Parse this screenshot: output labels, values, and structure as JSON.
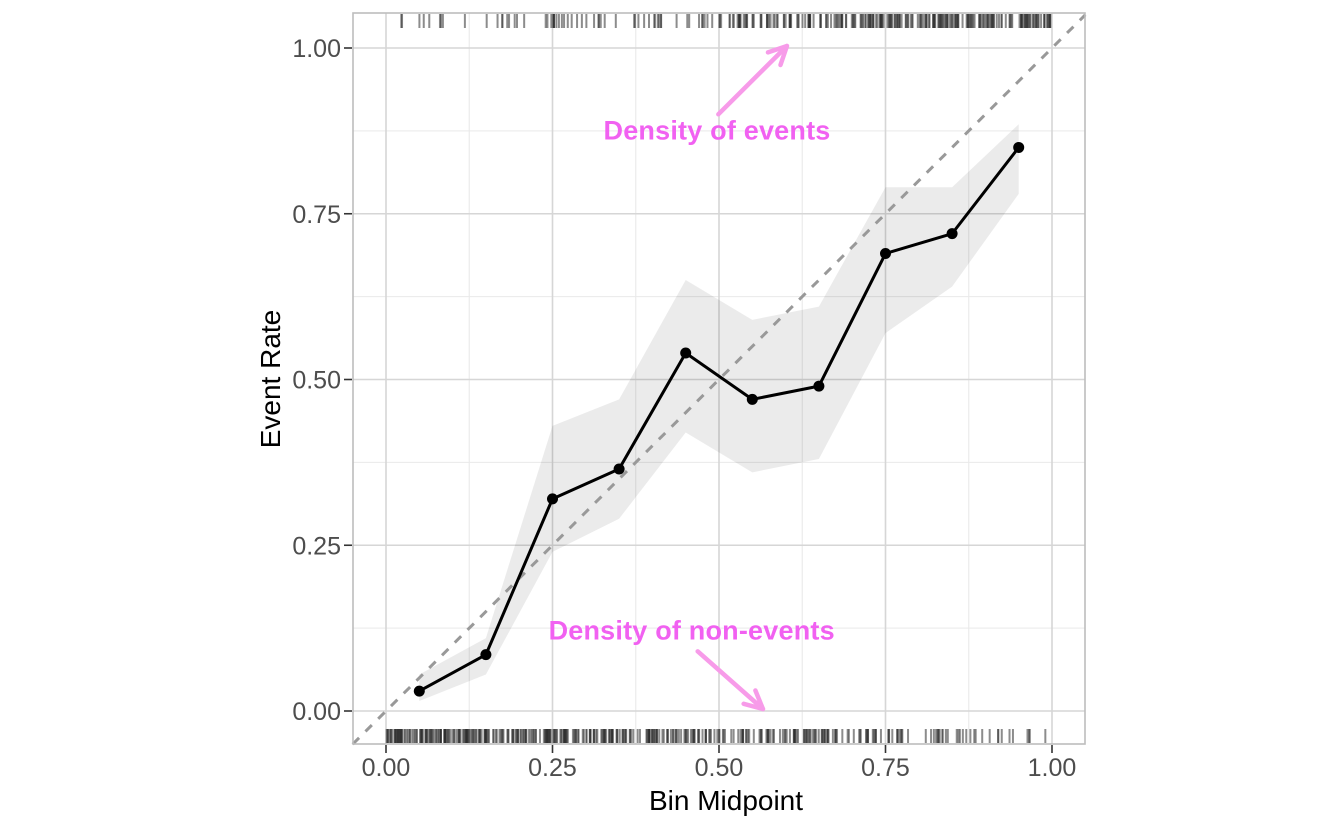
{
  "chart_data": {
    "type": "line",
    "title": "",
    "xlabel": "Bin Midpoint",
    "ylabel": "Event Rate",
    "xlim": [
      -0.05,
      1.05
    ],
    "ylim": [
      -0.05,
      1.05
    ],
    "grid": {
      "major": true,
      "minor": true,
      "minor_step": 0.125
    },
    "x_ticks": {
      "values": [
        0,
        0.25,
        0.5,
        0.75,
        1
      ],
      "labels": [
        "0.00",
        "0.25",
        "0.50",
        "0.75",
        "1.00"
      ]
    },
    "y_ticks": {
      "values": [
        0,
        0.25,
        0.5,
        0.75,
        1
      ],
      "labels": [
        "0.00",
        "0.25",
        "0.50",
        "0.75",
        "1.00"
      ]
    },
    "bin_midpoints": [
      0.05,
      0.15,
      0.25,
      0.35,
      0.45,
      0.55,
      0.65,
      0.75,
      0.85,
      0.95
    ],
    "series": [
      {
        "name": "Event Rate",
        "values": [
          0.03,
          0.085,
          0.32,
          0.365,
          0.54,
          0.47,
          0.49,
          0.69,
          0.72,
          0.85
        ]
      }
    ],
    "ribbon": {
      "lower": [
        0.015,
        0.055,
        0.24,
        0.29,
        0.42,
        0.36,
        0.38,
        0.57,
        0.64,
        0.78
      ],
      "upper": [
        0.055,
        0.11,
        0.43,
        0.47,
        0.65,
        0.59,
        0.61,
        0.79,
        0.79,
        0.885
      ]
    },
    "reference_line": {
      "style": "dashed",
      "from": [
        -0.05,
        -0.05
      ],
      "to": [
        1.05,
        1.05
      ]
    },
    "rugs": {
      "top": {
        "label": "events",
        "side": "top",
        "n": 300,
        "skew": "right",
        "seed": 7
      },
      "bottom": {
        "label": "non-events",
        "side": "bottom",
        "n": 430,
        "skew": "left",
        "seed": 13
      }
    },
    "annotations": [
      {
        "id": "events",
        "text": "Density of events",
        "x": 0.497,
        "y": 0.875,
        "arrow": {
          "x1": 0.499,
          "y1": 0.9,
          "x2": 0.602,
          "y2": 1.003
        }
      },
      {
        "id": "non-events",
        "text": "Density of non-events",
        "x": 0.459,
        "y": 0.121,
        "arrow": {
          "x1": 0.468,
          "y1": 0.09,
          "x2": 0.566,
          "y2": 0.003
        }
      }
    ],
    "colors": {
      "line": "#000000",
      "point": "#000000",
      "ribbon": "rgba(0,0,0,0.08)",
      "reference": "#999999",
      "annotation_text": "#f161f1",
      "annotation_arrow": "#f79be9",
      "rug": "rgba(45,45,45,0.55)",
      "grid_major": "#d6d6d6",
      "grid_minor": "#e9e9e9",
      "panel_border": "#bdbdbd",
      "tick_mark": "#333333",
      "tick_label": "#4d4d4d",
      "axis_title": "#000000"
    }
  }
}
